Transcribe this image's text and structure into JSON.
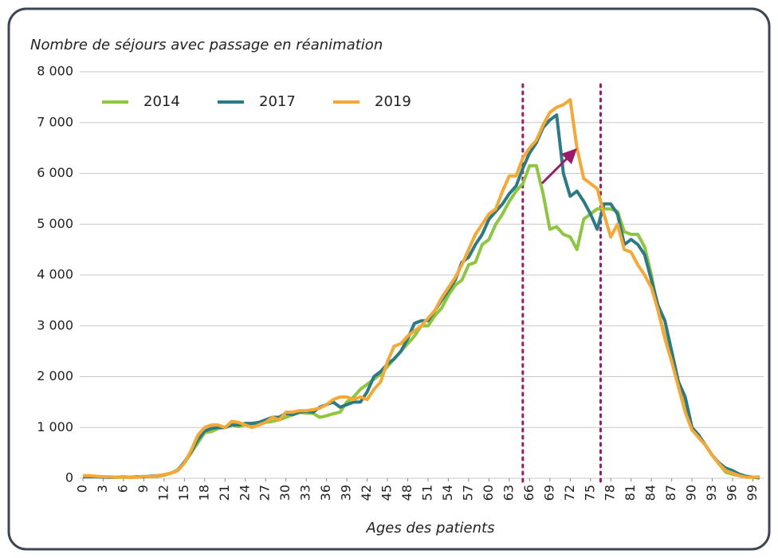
{
  "chart_data": {
    "type": "line",
    "y_label": "Nombre de séjours avec passage en réanimation",
    "x_label": "Ages des patients",
    "x": [
      0,
      1,
      2,
      3,
      4,
      5,
      6,
      7,
      8,
      9,
      10,
      11,
      12,
      13,
      14,
      15,
      16,
      17,
      18,
      19,
      20,
      21,
      22,
      23,
      24,
      25,
      26,
      27,
      28,
      29,
      30,
      31,
      32,
      33,
      34,
      35,
      36,
      37,
      38,
      39,
      40,
      41,
      42,
      43,
      44,
      45,
      46,
      47,
      48,
      49,
      50,
      51,
      52,
      53,
      54,
      55,
      56,
      57,
      58,
      59,
      60,
      61,
      62,
      63,
      64,
      65,
      66,
      67,
      68,
      69,
      70,
      71,
      72,
      73,
      74,
      75,
      76,
      77,
      78,
      79,
      80,
      81,
      82,
      83,
      84,
      85,
      86,
      87,
      88,
      89,
      90,
      91,
      92,
      93,
      94,
      95,
      96,
      97,
      98,
      99,
      100
    ],
    "series": [
      {
        "name": "2014",
        "color": "#8dc63f",
        "values": [
          40,
          40,
          30,
          30,
          20,
          20,
          20,
          20,
          20,
          30,
          30,
          40,
          60,
          100,
          150,
          300,
          500,
          700,
          900,
          920,
          980,
          1000,
          1050,
          1020,
          1050,
          1050,
          1100,
          1100,
          1120,
          1150,
          1200,
          1250,
          1300,
          1280,
          1280,
          1200,
          1230,
          1270,
          1300,
          1500,
          1600,
          1750,
          1850,
          1950,
          2050,
          2200,
          2350,
          2500,
          2650,
          2800,
          3000,
          3000,
          3200,
          3350,
          3600,
          3800,
          3900,
          4200,
          4250,
          4600,
          4700,
          5000,
          5200,
          5450,
          5650,
          5800,
          6150,
          6150,
          5600,
          4900,
          4950,
          4800,
          4750,
          4500,
          5100,
          5200,
          5300,
          5300,
          5300,
          5250,
          4850,
          4800,
          4800,
          4550,
          4000,
          3300,
          2800,
          2300,
          1900,
          1400,
          1000,
          800,
          650,
          450,
          280,
          120,
          80,
          50,
          30,
          20,
          10
        ]
      },
      {
        "name": "2017",
        "color": "#2a7b86",
        "values": [
          30,
          30,
          30,
          20,
          20,
          20,
          30,
          20,
          30,
          30,
          40,
          50,
          70,
          100,
          160,
          320,
          520,
          760,
          930,
          980,
          1000,
          1000,
          1050,
          1050,
          1080,
          1080,
          1100,
          1150,
          1200,
          1200,
          1280,
          1250,
          1300,
          1320,
          1300,
          1400,
          1450,
          1500,
          1400,
          1450,
          1500,
          1500,
          1700,
          2000,
          2100,
          2250,
          2350,
          2500,
          2750,
          3050,
          3100,
          3100,
          3300,
          3500,
          3700,
          3900,
          4250,
          4350,
          4600,
          4800,
          5100,
          5250,
          5400,
          5600,
          5750,
          6100,
          6400,
          6600,
          6900,
          7050,
          7150,
          6000,
          5550,
          5650,
          5450,
          5200,
          4900,
          5400,
          5400,
          5200,
          4600,
          4700,
          4600,
          4400,
          3900,
          3400,
          3100,
          2500,
          1900,
          1600,
          1000,
          850,
          650,
          450,
          300,
          200,
          150,
          80,
          40,
          20,
          10
        ]
      },
      {
        "name": "2019",
        "color": "#f7a833",
        "values": [
          50,
          50,
          40,
          30,
          30,
          20,
          30,
          20,
          20,
          40,
          30,
          50,
          70,
          100,
          150,
          300,
          550,
          850,
          1000,
          1050,
          1050,
          1000,
          1120,
          1100,
          1050,
          1000,
          1050,
          1100,
          1200,
          1150,
          1300,
          1300,
          1330,
          1330,
          1350,
          1380,
          1450,
          1550,
          1600,
          1600,
          1550,
          1600,
          1550,
          1750,
          1900,
          2300,
          2600,
          2650,
          2800,
          2900,
          3000,
          3150,
          3300,
          3550,
          3750,
          3950,
          4200,
          4500,
          4800,
          5000,
          5200,
          5300,
          5650,
          5950,
          5950,
          6300,
          6500,
          6650,
          6950,
          7200,
          7300,
          7350,
          7450,
          6500,
          5900,
          5800,
          5700,
          5200,
          4750,
          5000,
          4500,
          4450,
          4200,
          4000,
          3750,
          3300,
          2750,
          2300,
          1800,
          1300,
          950,
          800,
          650,
          450,
          280,
          150,
          100,
          50,
          20,
          20,
          30
        ]
      }
    ],
    "xlim": [
      0,
      100
    ],
    "xticks": [
      0,
      3,
      6,
      9,
      12,
      15,
      18,
      21,
      24,
      27,
      30,
      33,
      36,
      39,
      42,
      45,
      48,
      51,
      54,
      57,
      60,
      63,
      66,
      69,
      72,
      75,
      78,
      81,
      84,
      87,
      90,
      93,
      96,
      99
    ],
    "ylim": [
      0,
      8000
    ],
    "yticks": [
      0,
      {
        "value": 1000,
        "label": "1 000"
      },
      {
        "value": 2000,
        "label": "2 000"
      },
      {
        "value": 3000,
        "label": "3 000"
      },
      {
        "value": 4000,
        "label": "4 000"
      },
      {
        "value": 5000,
        "label": "5 000"
      },
      {
        "value": 6000,
        "label": "6 000"
      },
      {
        "value": 7000,
        "label": "7 000"
      },
      {
        "value": 8000,
        "label": "8 000"
      }
    ],
    "grid": true,
    "legend": "upper left",
    "reference_lines": {
      "color": "#9b1b6a",
      "x": [
        65,
        76.5
      ]
    }
  }
}
